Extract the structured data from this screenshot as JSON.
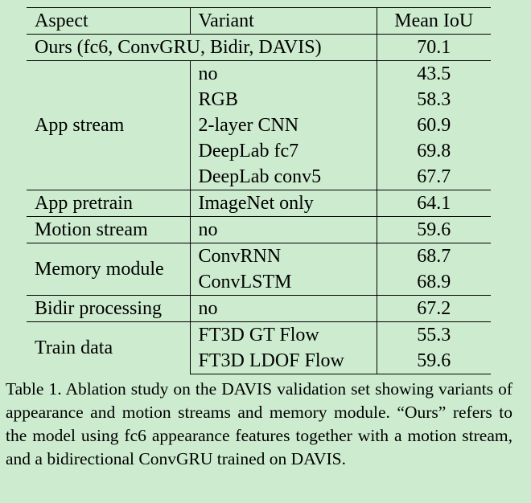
{
  "table": {
    "headers": [
      "Aspect",
      "Variant",
      "Mean IoU"
    ],
    "ours": {
      "label": "Ours (fc6, ConvGRU, Bidir, DAVIS)",
      "value": "70.1"
    },
    "groups": [
      {
        "aspect": "App stream",
        "rows": [
          {
            "variant": "no",
            "value": "43.5"
          },
          {
            "variant": "RGB",
            "value": "58.3"
          },
          {
            "variant": "2-layer CNN",
            "value": "60.9"
          },
          {
            "variant": "DeepLab fc7",
            "value": "69.8"
          },
          {
            "variant": "DeepLab conv5",
            "value": "67.7"
          }
        ]
      },
      {
        "aspect": "App pretrain",
        "rows": [
          {
            "variant": "ImageNet only",
            "value": "64.1"
          }
        ]
      },
      {
        "aspect": "Motion stream",
        "rows": [
          {
            "variant": "no",
            "value": "59.6"
          }
        ]
      },
      {
        "aspect": "Memory module",
        "rows": [
          {
            "variant": "ConvRNN",
            "value": "68.7"
          },
          {
            "variant": "ConvLSTM",
            "value": "68.9"
          }
        ]
      },
      {
        "aspect": "Bidir processing",
        "rows": [
          {
            "variant": "no",
            "value": "67.2"
          }
        ]
      },
      {
        "aspect": "Train data",
        "rows": [
          {
            "variant": "FT3D GT Flow",
            "value": "55.3"
          },
          {
            "variant": "FT3D LDOF Flow",
            "value": "59.6"
          }
        ]
      }
    ]
  },
  "caption": "Table 1. Ablation study on the DAVIS validation set showing variants of appearance and motion streams and memory module. “Ours” refers to the model using fc6 appearance features together with a motion stream, and a bidirectional ConvGRU trained on DAVIS."
}
